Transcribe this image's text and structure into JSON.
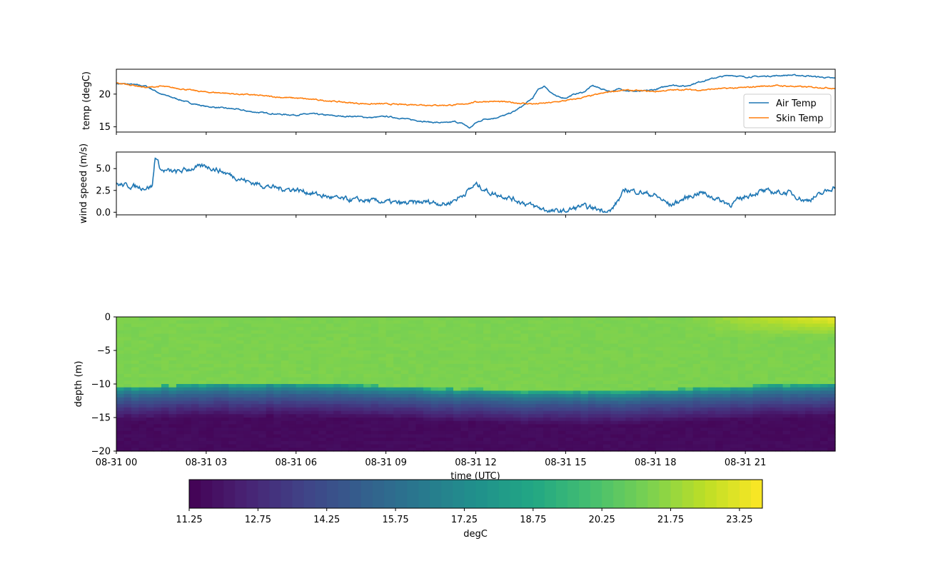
{
  "chart_data": [
    {
      "type": "line",
      "ylabel": "temp (degC)",
      "yticks": [
        15,
        20
      ],
      "ylim": [
        14.2,
        23.8
      ],
      "xlim_hours": [
        0,
        24
      ],
      "grid": false,
      "legend_position": "lower-right",
      "series": [
        {
          "name": "Air Temp",
          "color": "#1f77b4",
          "x_hours": [
            0,
            0.5,
            1,
            1.5,
            2,
            2.5,
            3,
            3.5,
            4,
            4.5,
            5,
            5.5,
            6,
            6.5,
            7,
            7.5,
            8,
            8.5,
            9,
            9.5,
            10,
            10.5,
            11,
            11.3,
            11.6,
            11.8,
            12,
            12.3,
            12.6,
            13,
            13.3,
            13.6,
            13.9,
            14.1,
            14.3,
            14.5,
            14.7,
            15,
            15.3,
            15.6,
            15.9,
            16.2,
            16.5,
            16.8,
            17.1,
            17.5,
            18,
            18.5,
            19,
            19.5,
            20,
            20.5,
            21,
            21.5,
            22,
            22.5,
            23,
            23.5,
            24
          ],
          "values": [
            21.6,
            21.5,
            21.2,
            20.0,
            19.3,
            18.6,
            18.1,
            17.9,
            17.7,
            17.3,
            17.1,
            16.9,
            16.8,
            17.0,
            16.8,
            16.6,
            16.6,
            16.4,
            16.6,
            16.3,
            16.0,
            15.7,
            15.6,
            15.8,
            15.4,
            14.8,
            15.6,
            16.2,
            16.3,
            16.8,
            17.4,
            18.3,
            19.4,
            20.8,
            21.2,
            20.3,
            19.6,
            19.4,
            20.0,
            20.3,
            21.3,
            20.8,
            20.4,
            20.8,
            20.5,
            20.4,
            20.7,
            21.4,
            21.2,
            21.9,
            22.5,
            22.9,
            22.6,
            22.7,
            22.8,
            22.9,
            22.8,
            22.6,
            22.4
          ]
        },
        {
          "name": "Skin Temp",
          "color": "#ff7f0e",
          "x_hours": [
            0,
            0.5,
            1,
            1.5,
            2,
            2.5,
            3,
            3.5,
            4,
            4.5,
            5,
            5.5,
            6,
            6.5,
            7,
            7.5,
            8,
            8.5,
            9,
            9.5,
            10,
            10.5,
            11,
            11.5,
            12,
            12.5,
            13,
            13.5,
            14,
            14.5,
            15,
            15.5,
            16,
            16.5,
            17,
            17.5,
            18,
            18.5,
            19,
            19.5,
            20,
            20.5,
            21,
            21.5,
            22,
            22.5,
            23,
            23.5,
            24
          ],
          "values": [
            21.7,
            21.4,
            21.0,
            21.2,
            20.9,
            20.6,
            20.3,
            20.2,
            20.0,
            19.9,
            19.7,
            19.5,
            19.4,
            19.2,
            19.0,
            18.8,
            18.6,
            18.5,
            18.5,
            18.4,
            18.4,
            18.3,
            18.3,
            18.4,
            18.8,
            18.9,
            18.8,
            18.6,
            18.5,
            18.7,
            19.0,
            19.4,
            19.9,
            20.4,
            20.6,
            20.5,
            20.4,
            20.6,
            20.7,
            20.6,
            20.8,
            20.9,
            21.0,
            21.2,
            21.3,
            21.2,
            21.1,
            21.0,
            20.9
          ]
        }
      ]
    },
    {
      "type": "line",
      "ylabel": "wind speed (m/s)",
      "yticks": [
        0.0,
        2.5,
        5.0
      ],
      "ytick_labels": [
        "0.0",
        "2.5",
        "5.0"
      ],
      "ylim": [
        -0.3,
        6.9
      ],
      "xlim_hours": [
        0,
        24
      ],
      "grid": false,
      "series": [
        {
          "color": "#1f77b4",
          "x_hours": [
            0,
            0.5,
            1,
            1.2,
            1.3,
            1.5,
            2,
            2.5,
            3,
            3.5,
            4,
            4.5,
            5,
            5.5,
            6,
            6.5,
            7,
            7.5,
            8,
            8.5,
            9,
            9.5,
            10,
            10.5,
            11,
            11.5,
            12,
            12.5,
            13,
            13.5,
            14,
            14.5,
            15,
            15.5,
            16,
            16.5,
            17,
            17.5,
            18,
            18.5,
            19,
            19.5,
            20,
            20.5,
            21,
            21.5,
            22,
            22.5,
            23,
            23.5,
            24
          ],
          "values": [
            3.2,
            3.0,
            2.8,
            3.0,
            6.5,
            4.8,
            4.6,
            5.0,
            5.3,
            4.7,
            4.0,
            3.4,
            3.0,
            2.7,
            2.6,
            2.2,
            1.8,
            1.5,
            1.4,
            1.3,
            1.2,
            1.0,
            1.1,
            1.2,
            0.9,
            1.8,
            3.2,
            2.2,
            1.8,
            1.2,
            0.6,
            0.1,
            0.1,
            0.7,
            0.4,
            0.1,
            2.6,
            2.3,
            1.9,
            0.8,
            1.6,
            2.3,
            1.6,
            0.9,
            1.8,
            2.4,
            2.3,
            2.2,
            1.3,
            2.0,
            3.0
          ]
        }
      ]
    },
    {
      "type": "heatmap",
      "xlabel": "time (UTC)",
      "ylabel": "depth (m)",
      "ylim": [
        -20,
        0
      ],
      "yticks": [
        0,
        -5,
        -10,
        -15,
        -20
      ],
      "xticks_hours": [
        0,
        3,
        6,
        9,
        12,
        15,
        18,
        21
      ],
      "xtick_labels": [
        "08-31 00",
        "08-31 03",
        "08-31 06",
        "08-31 09",
        "08-31 12",
        "08-31 15",
        "08-31 18",
        "08-31 21"
      ],
      "colormap": "viridis",
      "value_range": [
        11.25,
        23.75
      ],
      "colorbar_label": "degC",
      "colorbar_ticks": [
        "11.25",
        "12.75",
        "14.25",
        "15.75",
        "17.25",
        "18.75",
        "20.25",
        "21.75",
        "23.25"
      ],
      "colorbar_tick_values": [
        11.25,
        12.75,
        14.25,
        15.75,
        17.25,
        18.75,
        20.25,
        21.75,
        23.25
      ],
      "thermocline_depth_m": -10.5,
      "mixed_layer_temp_degC": 21.3,
      "bottom_temp_degC": 11.6,
      "surface_warming_hours": [
        19,
        24
      ],
      "surface_max_temp_degC": 23.5
    }
  ]
}
